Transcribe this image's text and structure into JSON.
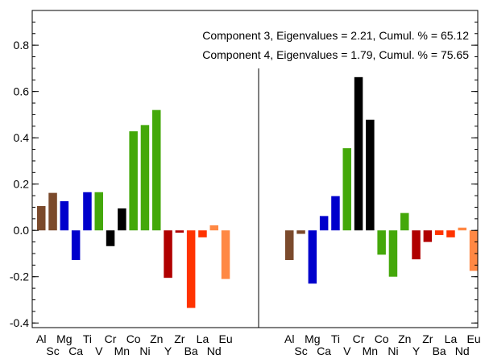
{
  "chart_data": {
    "type": "bar",
    "categories": [
      "Al",
      "Sc",
      "Mg",
      "Ca",
      "Ti",
      "V",
      "Cr",
      "Mn",
      "Co",
      "Ni",
      "Zn",
      "Y",
      "Zr",
      "Ba",
      "La",
      "Nd",
      "Eu"
    ],
    "category_colors": [
      "#7b4a2c",
      "#7b4a2c",
      "#0000cc",
      "#0000cc",
      "#0000cc",
      "#44a80a",
      "#000000",
      "#000000",
      "#44a80a",
      "#44a80a",
      "#44a80a",
      "#b00000",
      "#b00000",
      "#ff3300",
      "#ff3300",
      "#ff8844",
      "#ff8844"
    ],
    "ylim": [
      -0.42,
      0.95
    ],
    "yticks": [
      -0.4,
      -0.2,
      0.0,
      0.2,
      0.4,
      0.6,
      0.8
    ],
    "ytick_labels": [
      "-0.4",
      "-0.2",
      "0.0",
      "0.2",
      "0.4",
      "0.6",
      "0.8"
    ],
    "grid": false,
    "series": [
      {
        "name": "Component 3, Eigenvalues = 2.21, Cumul. % = 65.12",
        "values": [
          0.105,
          0.162,
          0.126,
          -0.128,
          0.165,
          0.165,
          -0.068,
          0.095,
          0.428,
          0.455,
          0.52,
          -0.205,
          -0.01,
          -0.335,
          -0.03,
          0.022,
          -0.21
        ]
      },
      {
        "name": "Component 4, Eigenvalues = 1.79, Cumul. % = 75.65",
        "values": [
          -0.128,
          -0.015,
          -0.23,
          0.062,
          0.148,
          0.355,
          0.662,
          0.478,
          -0.105,
          -0.2,
          0.075,
          -0.125,
          -0.05,
          -0.02,
          -0.03,
          0.012,
          -0.175
        ]
      }
    ]
  }
}
